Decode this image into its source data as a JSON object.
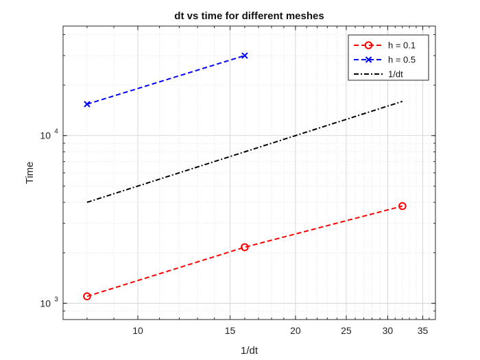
{
  "chart_data": {
    "type": "line",
    "title": "dt vs time for different meshes",
    "xlabel": "1/dt",
    "ylabel": "Time",
    "xscale": "log",
    "yscale": "log",
    "xlim": [
      7.2,
      37
    ],
    "ylim": [
      800,
      45000
    ],
    "grid": "major-and-minor",
    "legend_position": "top-right",
    "x_ticks": [
      10,
      15,
      20,
      25,
      30,
      35
    ],
    "y_ticks": [
      {
        "value": 1000,
        "base": "10",
        "exp": "3"
      },
      {
        "value": 10000,
        "base": "10",
        "exp": "4"
      }
    ],
    "series": [
      {
        "name": "h = 0.1",
        "x": [
          8,
          16,
          32
        ],
        "y": [
          1100,
          2160,
          3800
        ],
        "color": "#ff0000",
        "line_style": "dashed",
        "marker": "circle"
      },
      {
        "name": "h = 0.5",
        "x": [
          8,
          16
        ],
        "y": [
          15400,
          30000
        ],
        "color": "#0000ff",
        "line_style": "dashed",
        "marker": "x"
      },
      {
        "name": "1/dt",
        "x": [
          8,
          32
        ],
        "y": [
          4000,
          16000
        ],
        "color": "#000000",
        "line_style": "dash-dot",
        "marker": "none"
      }
    ]
  }
}
